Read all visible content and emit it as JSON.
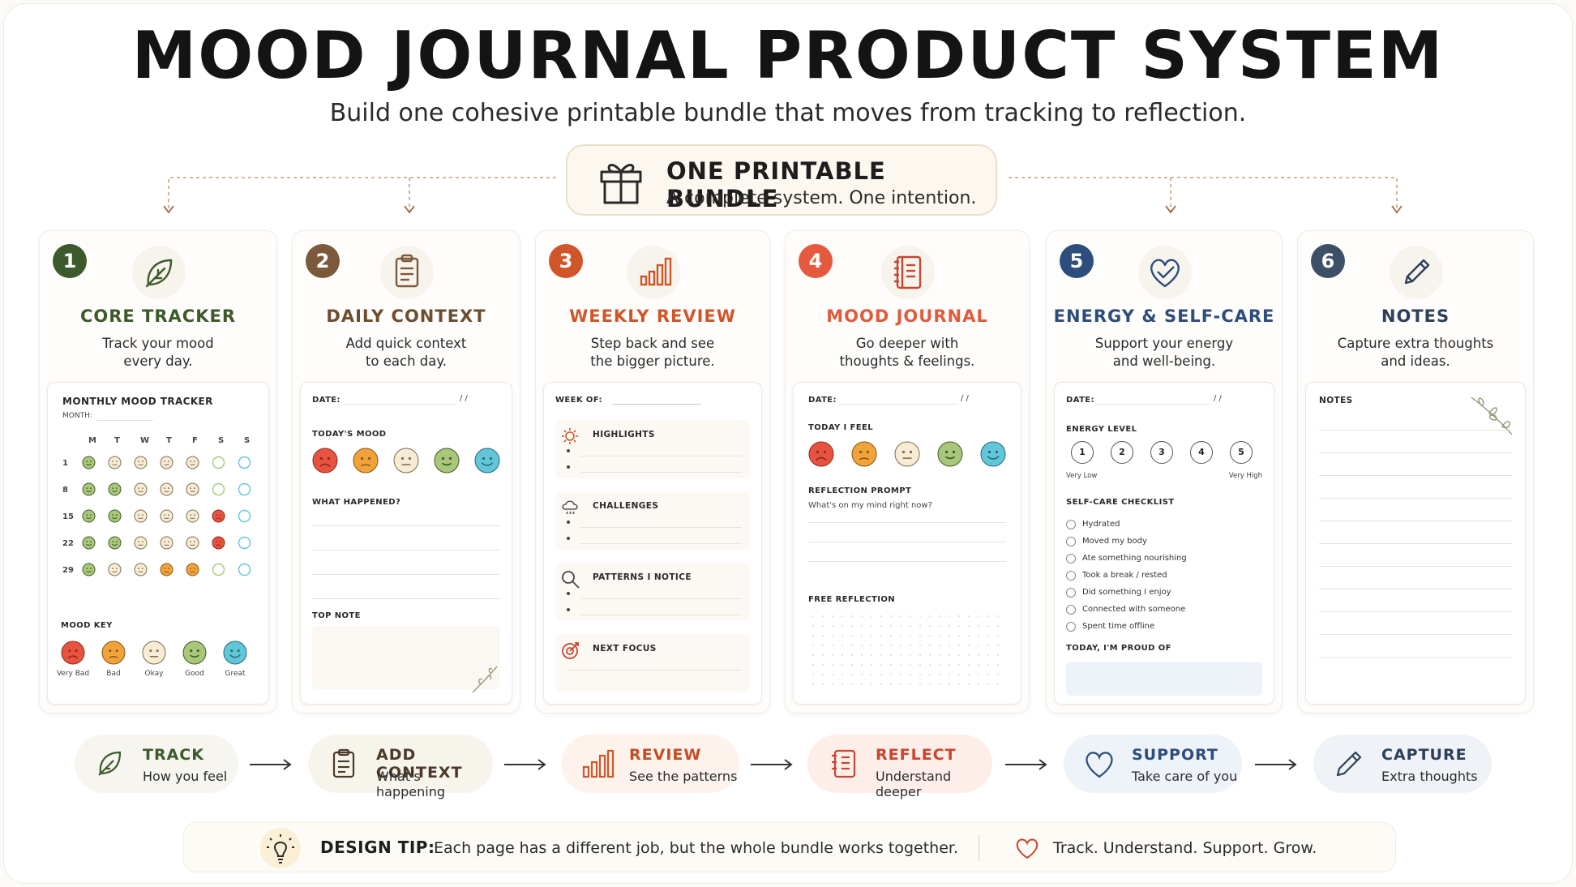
{
  "title": "MOOD JOURNAL PRODUCT SYSTEM",
  "subtitle": "Build one cohesive printable bundle that moves from tracking to reflection.",
  "bundle": {
    "title": "ONE PRINTABLE BUNDLE",
    "subtitle": "A complete system. One intention.",
    "icon": "gift-icon"
  },
  "colors": {
    "green": "#3c5a2c",
    "brown": "#7a5a3a",
    "orange": "#d0562a",
    "red": "#c8452f",
    "blue": "#2d4d7c",
    "slate": "#3e5068"
  },
  "cards": [
    {
      "num": "1",
      "title": "CORE TRACKER",
      "desc1": "Track your mood",
      "desc2": "every day.",
      "icon": "leaf-icon"
    },
    {
      "num": "2",
      "title": "DAILY CONTEXT",
      "desc1": "Add quick context",
      "desc2": "to each day.",
      "icon": "clipboard-icon"
    },
    {
      "num": "3",
      "title": "WEEKLY REVIEW",
      "desc1": "Step back and see",
      "desc2": "the bigger picture.",
      "icon": "bar-chart-icon"
    },
    {
      "num": "4",
      "title": "MOOD JOURNAL",
      "desc1": "Go deeper with",
      "desc2": "thoughts & feelings.",
      "icon": "notebook-icon"
    },
    {
      "num": "5",
      "title": "ENERGY & SELF-CARE",
      "desc1": "Support your energy",
      "desc2": "and well-being.",
      "icon": "heart-check-icon"
    },
    {
      "num": "6",
      "title": "NOTES",
      "desc1": "Capture extra thoughts",
      "desc2": "and ideas.",
      "icon": "pencil-icon"
    }
  ],
  "tracker": {
    "heading": "MONTHLY MOOD TRACKER",
    "month_label": "MONTH:",
    "days": [
      "M",
      "T",
      "W",
      "T",
      "F",
      "S",
      "S"
    ],
    "rows": [
      "1",
      "8",
      "15",
      "22",
      "29"
    ],
    "key_label": "MOOD KEY",
    "moods": [
      "Very Bad",
      "Bad",
      "Okay",
      "Good",
      "Great"
    ]
  },
  "daily": {
    "date": "DATE:",
    "slashes": "/     /",
    "mood": "TODAY'S MOOD",
    "happened": "WHAT HAPPENED?",
    "top_note": "TOP NOTE"
  },
  "weekly": {
    "week_of": "WEEK OF:",
    "highlights": "HIGHLIGHTS",
    "challenges": "CHALLENGES",
    "patterns": "PATTERNS I NOTICE",
    "next_focus": "NEXT FOCUS"
  },
  "journal": {
    "date": "DATE:",
    "slashes": "/     /",
    "feel": "TODAY I FEEL",
    "prompt_label": "REFLECTION PROMPT",
    "prompt": "What's on my mind right now?",
    "free": "FREE REFLECTION"
  },
  "energy": {
    "date": "DATE:",
    "slashes": "/     /",
    "level_label": "ENERGY LEVEL",
    "levels": [
      "1",
      "2",
      "3",
      "4",
      "5"
    ],
    "low": "Very Low",
    "high": "Very High",
    "checklist_label": "SELF-CARE CHECKLIST",
    "checklist": [
      "Hydrated",
      "Moved my body",
      "Ate something nourishing",
      "Took a break / rested",
      "Did something I enjoy",
      "Connected with someone",
      "Spent time offline"
    ],
    "proud": "TODAY, I'M PROUD OF"
  },
  "notes": {
    "label": "NOTES"
  },
  "flow": [
    {
      "title": "TRACK",
      "sub": "How you feel",
      "icon": "leaf-icon"
    },
    {
      "title": "ADD CONTEXT",
      "sub": "What's happening",
      "icon": "clipboard-icon"
    },
    {
      "title": "REVIEW",
      "sub": "See the patterns",
      "icon": "bar-chart-icon"
    },
    {
      "title": "REFLECT",
      "sub": "Understand deeper",
      "icon": "notebook-icon"
    },
    {
      "title": "SUPPORT",
      "sub": "Take care of you",
      "icon": "heart-icon"
    },
    {
      "title": "CAPTURE",
      "sub": "Extra thoughts",
      "icon": "pencil-icon"
    }
  ],
  "tip": {
    "label": "DESIGN TIP:",
    "text": "Each page has a different job, but the whole bundle works together.",
    "tagline": "Track. Understand. Support. Grow.",
    "icon": "lightbulb-icon"
  }
}
